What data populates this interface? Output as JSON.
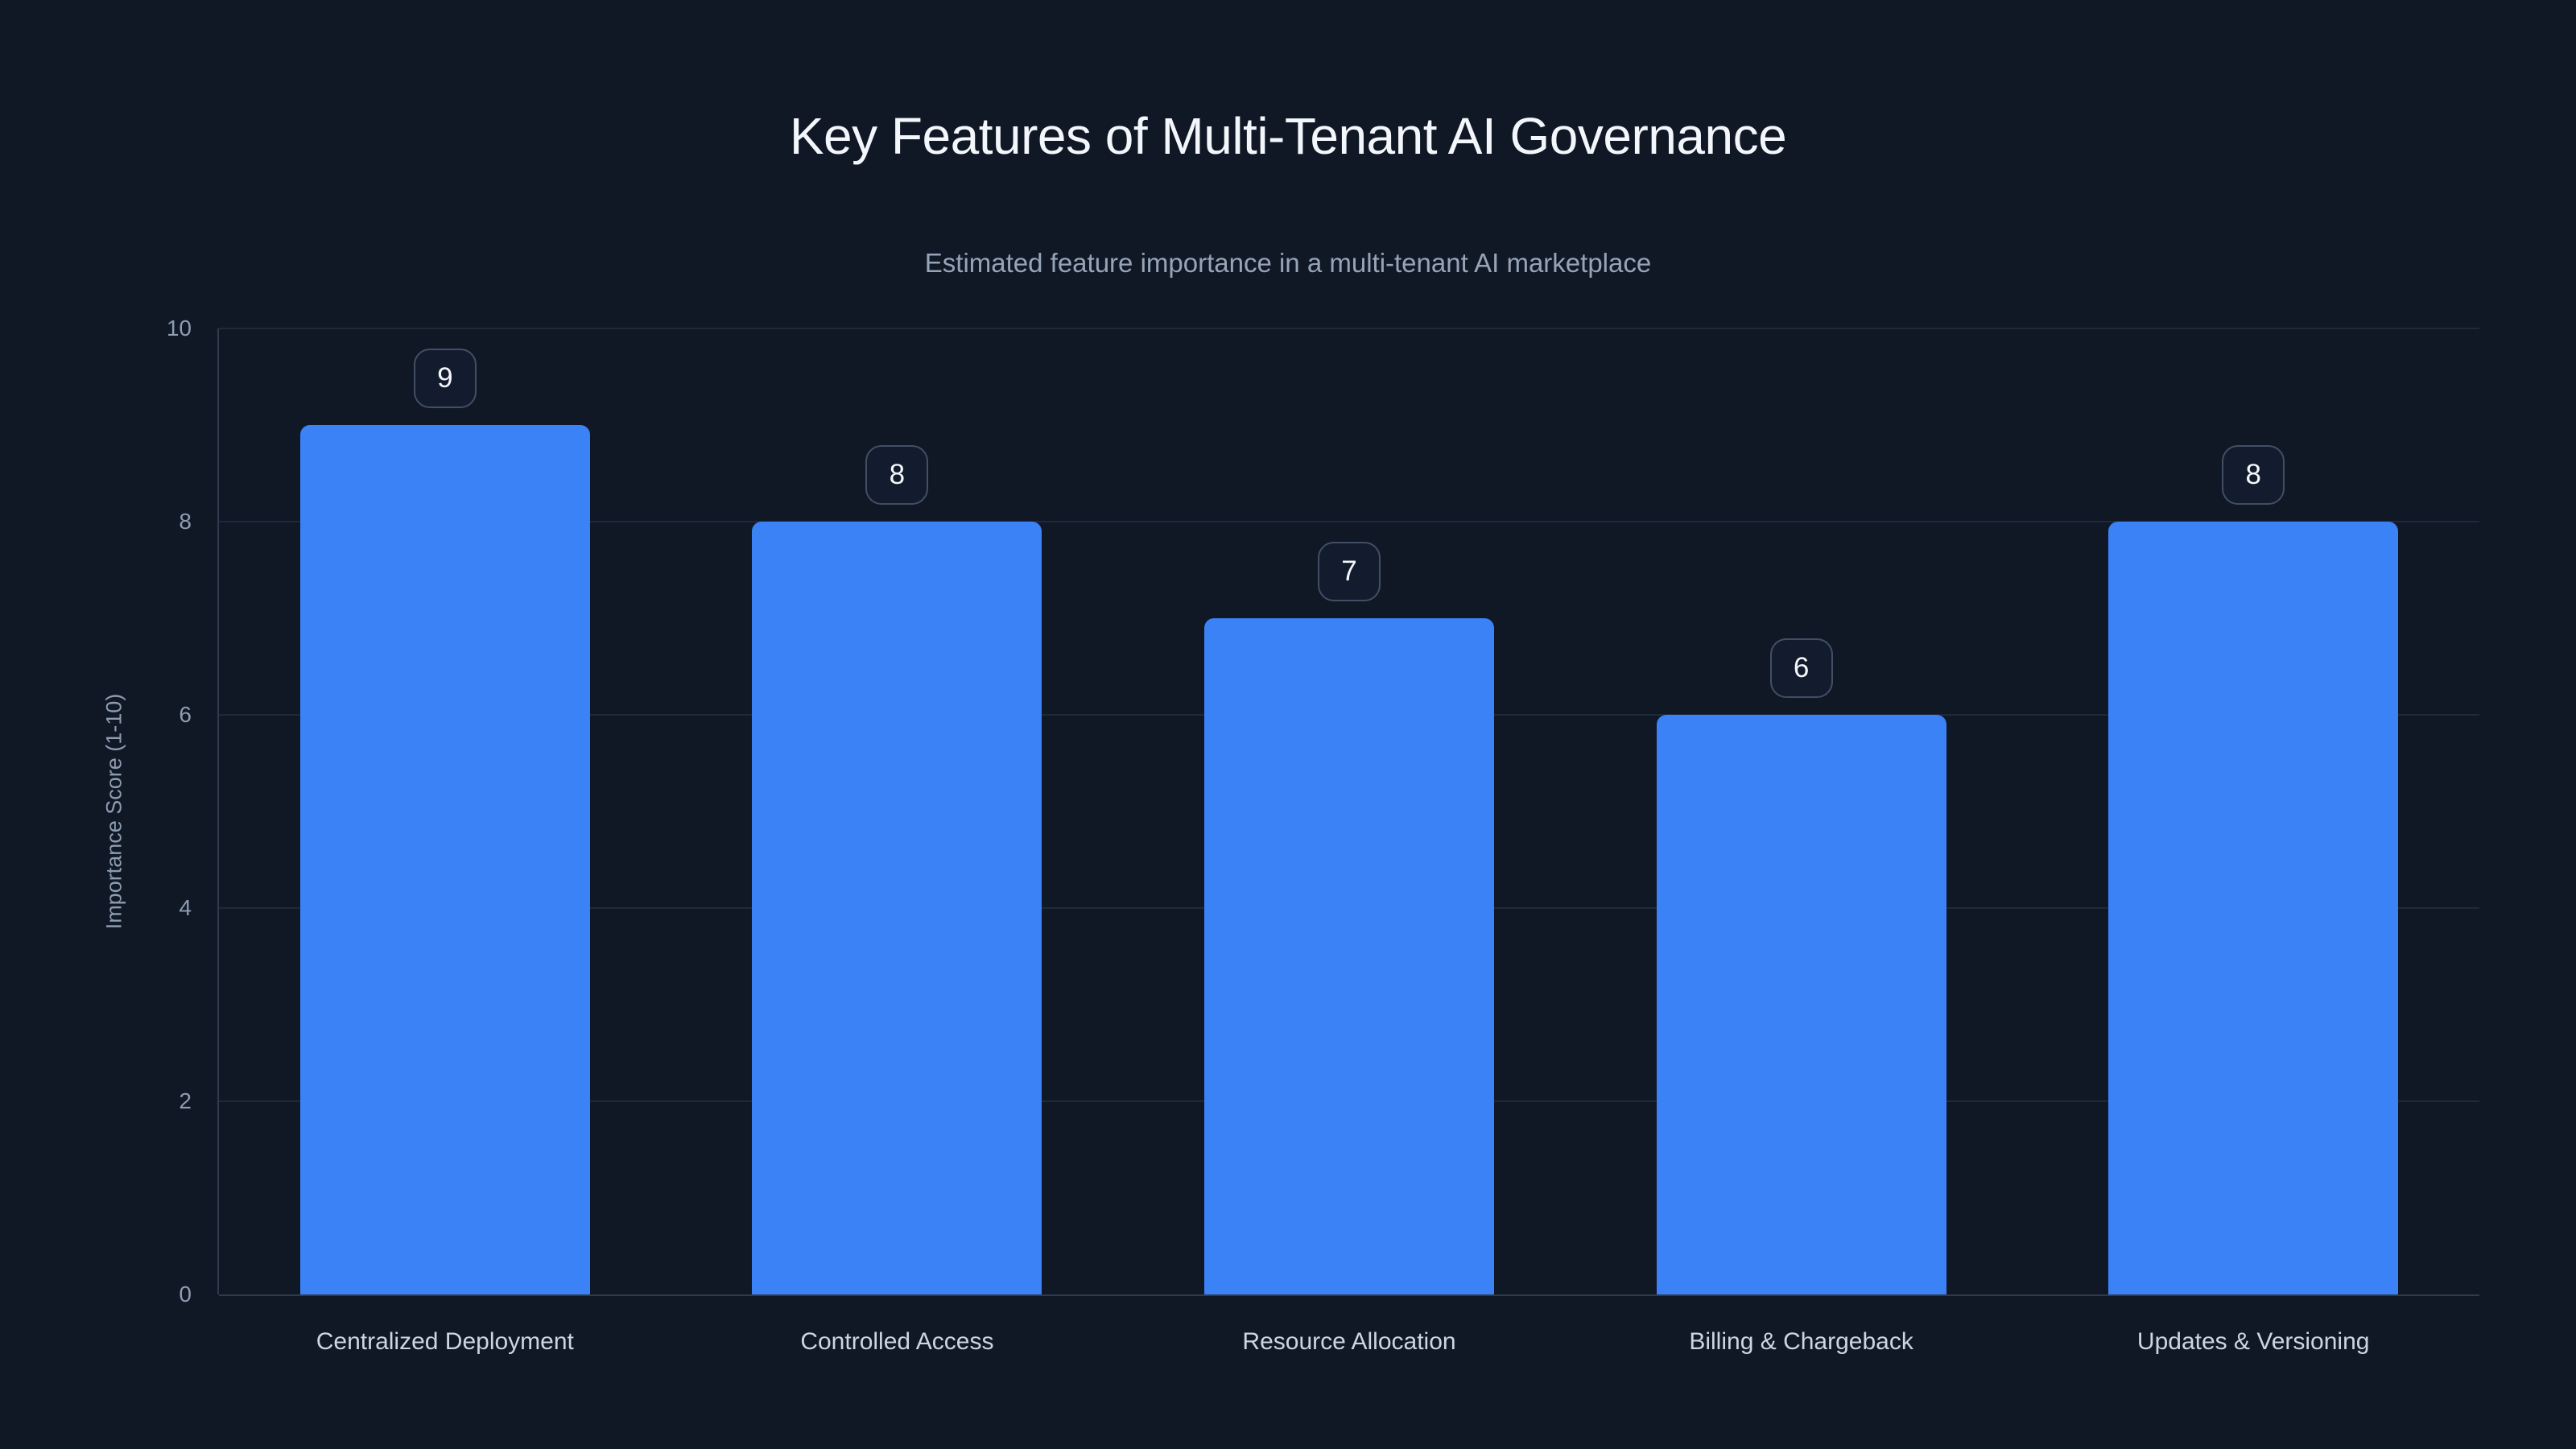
{
  "header": {
    "title": "Key Features of Multi-Tenant AI Governance",
    "subtitle": "Estimated feature importance in a multi-tenant AI marketplace"
  },
  "chart_data": {
    "type": "bar",
    "title": "Key Features of Multi-Tenant AI Governance",
    "subtitle": "Estimated feature importance in a multi-tenant AI marketplace",
    "categories": [
      "Centralized Deployment",
      "Controlled Access",
      "Resource Allocation",
      "Billing & Chargeback",
      "Updates & Versioning"
    ],
    "values": [
      9,
      8,
      7,
      6,
      8
    ],
    "value_labels": [
      "9",
      "8",
      "7",
      "6",
      "8"
    ],
    "xlabel": "",
    "ylabel": "Importance Score (1-10)",
    "ylim": [
      0,
      10
    ],
    "yticks": [
      0,
      2,
      4,
      6,
      8,
      10
    ],
    "grid": true,
    "legend": false,
    "colors": {
      "background": "#101826",
      "bar": "#3b82f6",
      "title": "#f3f6fb",
      "subtitle": "#97a4b7",
      "tick": "#8e9cb0",
      "category": "#ccd5e0",
      "gridline": "#1e293a",
      "axis": "#2e3a4e",
      "badge_border": "#424f63",
      "badge_bg": "#121c2e",
      "badge_text": "#f5f7fa"
    }
  }
}
